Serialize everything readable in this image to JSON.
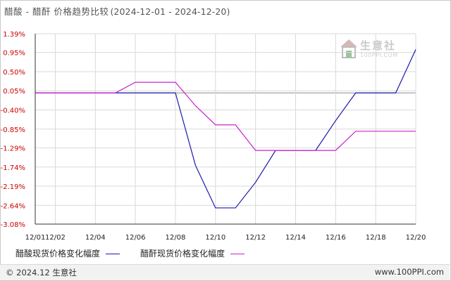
{
  "title": {
    "main": "醋酸 - 醋酐 价格趋势比较",
    "range": "(2024-12-01 - 2024-12-20)"
  },
  "watermark": {
    "name": "生意社",
    "url": "100PPI.COM"
  },
  "footer": {
    "copyright": "© 2024.12 生意社",
    "site": "www.100PPI.com"
  },
  "colors": {
    "acetic_acid": "#1a1aaa",
    "acetic_anhydride": "#cc22cc",
    "grid": "#d9d9d9",
    "zero_line": "#8c8c8c",
    "axis": "#333333"
  },
  "chart_data": {
    "type": "line",
    "title": "醋酸 - 醋酐 价格趋势比较",
    "xlabel": "",
    "ylabel": "",
    "x_ticks": [
      "12/01",
      "12/02",
      "12/04",
      "12/06",
      "12/08",
      "12/10",
      "12/12",
      "12/14",
      "12/16",
      "12/18",
      "12/20"
    ],
    "y_ticks": [
      "1.39%",
      "0.95%",
      "0.50%",
      "0.05%",
      "-0.40%",
      "-0.85%",
      "-1.29%",
      "-1.74%",
      "-2.19%",
      "-2.64%",
      "-3.08%"
    ],
    "y_tick_values": [
      1.39,
      0.95,
      0.5,
      0.05,
      -0.4,
      -0.85,
      -1.29,
      -1.74,
      -2.19,
      -2.64,
      -3.08
    ],
    "ylim": [
      -3.08,
      1.39
    ],
    "xlim": [
      "2024-12-01",
      "2024-12-20"
    ],
    "grid": true,
    "legend_position": "bottom",
    "series": [
      {
        "name": "醋酸现货价格变化幅度",
        "color": "#1a1aaa",
        "points": [
          {
            "x": "2024-12-01",
            "y": 0.0
          },
          {
            "x": "2024-12-05",
            "y": 0.0
          },
          {
            "x": "2024-12-08",
            "y": 0.0
          },
          {
            "x": "2024-12-09",
            "y": -1.7
          },
          {
            "x": "2024-12-10",
            "y": -2.7
          },
          {
            "x": "2024-12-11",
            "y": -2.7
          },
          {
            "x": "2024-12-12",
            "y": -2.1
          },
          {
            "x": "2024-12-13",
            "y": -1.35
          },
          {
            "x": "2024-12-15",
            "y": -1.35
          },
          {
            "x": "2024-12-16",
            "y": -0.65
          },
          {
            "x": "2024-12-17",
            "y": 0.0
          },
          {
            "x": "2024-12-19",
            "y": 0.0
          },
          {
            "x": "2024-12-20",
            "y": 1.02
          }
        ]
      },
      {
        "name": "醋酐现货价格变化幅度",
        "color": "#cc22cc",
        "points": [
          {
            "x": "2024-12-01",
            "y": 0.0
          },
          {
            "x": "2024-12-05",
            "y": 0.0
          },
          {
            "x": "2024-12-06",
            "y": 0.25
          },
          {
            "x": "2024-12-08",
            "y": 0.25
          },
          {
            "x": "2024-12-09",
            "y": -0.3
          },
          {
            "x": "2024-12-10",
            "y": -0.75
          },
          {
            "x": "2024-12-11",
            "y": -0.75
          },
          {
            "x": "2024-12-12",
            "y": -1.35
          },
          {
            "x": "2024-12-16",
            "y": -1.35
          },
          {
            "x": "2024-12-17",
            "y": -0.9
          },
          {
            "x": "2024-12-20",
            "y": -0.9
          }
        ]
      }
    ]
  }
}
